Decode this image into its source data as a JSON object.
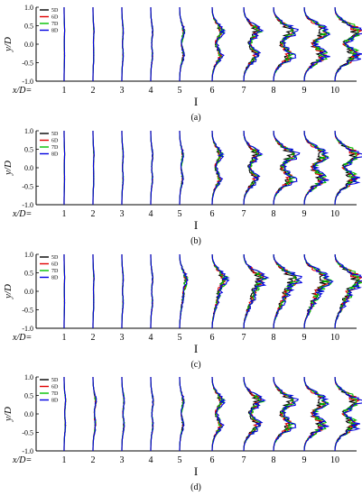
{
  "chart_data": [
    {
      "type": "line",
      "panel_label": "(a)",
      "ylabel": "y/D",
      "xlabel": "I",
      "x_prefix": "x/D=",
      "x_positions": [
        "1",
        "2",
        "3",
        "4",
        "5",
        "6",
        "7",
        "8",
        "9",
        "10"
      ],
      "ylim": [
        -1.0,
        1.0
      ],
      "y_ticks": [
        "1.0",
        "0.5",
        "0.0",
        "-0.5",
        "-1.0"
      ],
      "legend": [
        {
          "name": "5D",
          "color": "#000000"
        },
        {
          "name": "6D",
          "color": "#e00000"
        },
        {
          "name": "7D",
          "color": "#00c000"
        },
        {
          "name": "8D",
          "color": "#0000e0"
        }
      ],
      "profile_shape": "two_peak",
      "amplitude_by_station": [
        0.01,
        0.02,
        0.03,
        0.04,
        0.09,
        0.18,
        0.27,
        0.36,
        0.42,
        0.46
      ]
    },
    {
      "type": "line",
      "panel_label": "(b)",
      "ylabel": "y/D",
      "xlabel": "I",
      "x_prefix": "x/D=",
      "x_positions": [
        "1",
        "2",
        "3",
        "4",
        "5",
        "6",
        "7",
        "8",
        "9",
        "10"
      ],
      "ylim": [
        -1.0,
        1.0
      ],
      "y_ticks": [
        "1.0",
        "0.5",
        "0.0",
        "-0.5",
        "-1.0"
      ],
      "legend": [
        {
          "name": "5D",
          "color": "#000000"
        },
        {
          "name": "6D",
          "color": "#e00000"
        },
        {
          "name": "7D",
          "color": "#00c000"
        },
        {
          "name": "8D",
          "color": "#0000e0"
        }
      ],
      "profile_shape": "two_peak",
      "amplitude_by_station": [
        0.01,
        0.02,
        0.03,
        0.04,
        0.07,
        0.16,
        0.26,
        0.38,
        0.4,
        0.42
      ]
    },
    {
      "type": "line",
      "panel_label": "(c)",
      "ylabel": "y/D",
      "xlabel": "I",
      "x_prefix": "x/D=",
      "x_positions": [
        "1",
        "2",
        "3",
        "4",
        "5",
        "6",
        "7",
        "8",
        "9",
        "10"
      ],
      "ylim": [
        -1.0,
        1.0
      ],
      "y_ticks": [
        "1.0",
        "0.5",
        "0.0",
        "-0.5",
        "-1.0"
      ],
      "legend": [
        {
          "name": "5D",
          "color": "#000000"
        },
        {
          "name": "6D",
          "color": "#e00000"
        },
        {
          "name": "7D",
          "color": "#00c000"
        },
        {
          "name": "8D",
          "color": "#0000e0"
        }
      ],
      "profile_shape": "upper_peak",
      "amplitude_by_station": [
        0.01,
        0.02,
        0.03,
        0.04,
        0.12,
        0.2,
        0.3,
        0.36,
        0.38,
        0.4
      ]
    },
    {
      "type": "line",
      "panel_label": "(d)",
      "ylabel": "y/D",
      "xlabel": "I",
      "x_prefix": "x/D=",
      "x_positions": [
        "1",
        "2",
        "3",
        "4",
        "5",
        "6",
        "7",
        "8",
        "9",
        "10"
      ],
      "ylim": [
        -1.0,
        1.0
      ],
      "y_ticks": [
        "1.0",
        "0.5",
        "0.0",
        "-0.5",
        "-1.0"
      ],
      "legend": [
        {
          "name": "5D",
          "color": "#000000"
        },
        {
          "name": "6D",
          "color": "#e00000"
        },
        {
          "name": "7D",
          "color": "#00c000"
        },
        {
          "name": "8D",
          "color": "#0000e0"
        }
      ],
      "profile_shape": "two_peak",
      "amplitude_by_station": [
        0.03,
        0.06,
        0.05,
        0.05,
        0.08,
        0.18,
        0.3,
        0.36,
        0.4,
        0.42
      ]
    }
  ]
}
